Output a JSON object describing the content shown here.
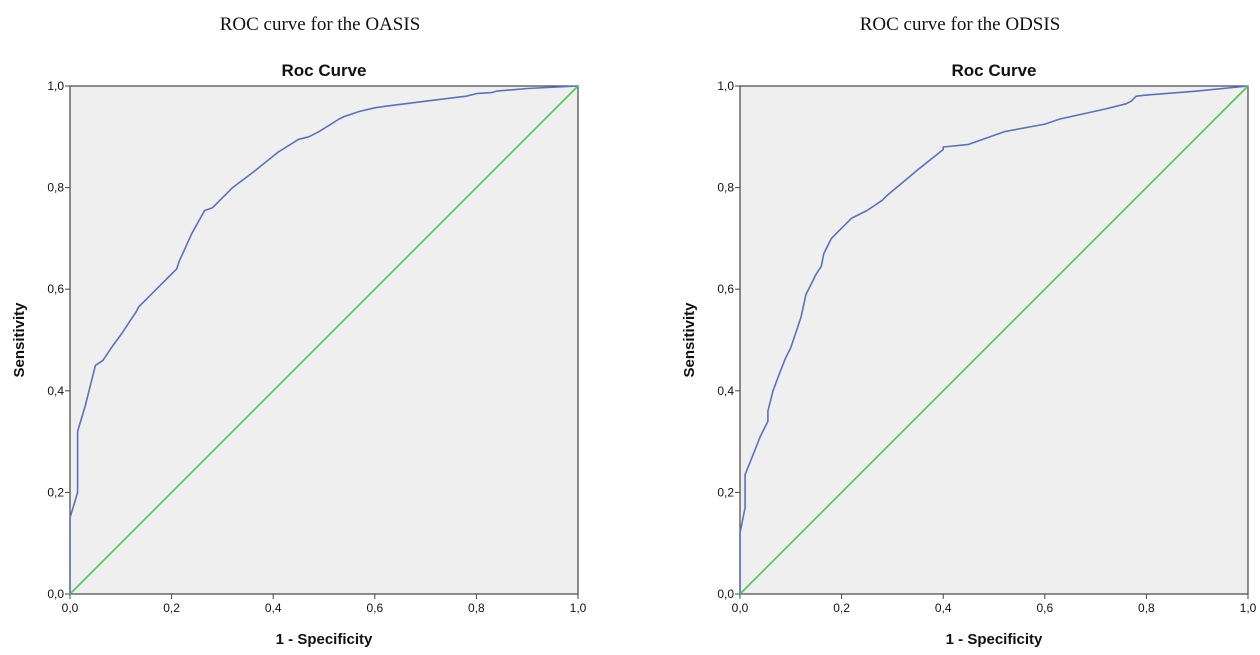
{
  "captions": {
    "left": "ROC curve for the OASIS",
    "right": "ROC curve for the ODSIS"
  },
  "colors": {
    "plot_background": "#efefef",
    "roc_line": "#5a72bd",
    "reference_line": "#4cc94c",
    "frame": "#444444"
  },
  "chart_data": [
    {
      "type": "line",
      "title": "Roc Curve",
      "xlabel": "1 - Specificity",
      "ylabel": "Sensitivity",
      "xlim": [
        0,
        1
      ],
      "ylim": [
        0,
        1
      ],
      "xticks": [
        "0,0",
        "0,2",
        "0,4",
        "0,6",
        "0,8",
        "1,0"
      ],
      "yticks": [
        "0,0",
        "0,2",
        "0,4",
        "0,6",
        "0,8",
        "1,0"
      ],
      "grid": false,
      "series": [
        {
          "role": "roc",
          "x": [
            0,
            0,
            0.015,
            0.015,
            0.03,
            0.05,
            0.065,
            0.085,
            0.1,
            0.13,
            0.135,
            0.15,
            0.17,
            0.2,
            0.21,
            0.215,
            0.24,
            0.265,
            0.28,
            0.3,
            0.32,
            0.36,
            0.41,
            0.45,
            0.47,
            0.49,
            0.53,
            0.54,
            0.57,
            0.6,
            0.62,
            0.7,
            0.78,
            0.8,
            0.83,
            0.84,
            0.9,
            1.0
          ],
          "y": [
            0,
            0.15,
            0.2,
            0.32,
            0.37,
            0.45,
            0.46,
            0.49,
            0.51,
            0.555,
            0.565,
            0.58,
            0.6,
            0.63,
            0.64,
            0.655,
            0.71,
            0.755,
            0.76,
            0.78,
            0.8,
            0.83,
            0.87,
            0.895,
            0.9,
            0.91,
            0.935,
            0.94,
            0.95,
            0.957,
            0.96,
            0.97,
            0.98,
            0.985,
            0.987,
            0.99,
            0.995,
            1.0
          ]
        },
        {
          "role": "reference",
          "x": [
            0,
            1
          ],
          "y": [
            0,
            1
          ]
        }
      ]
    },
    {
      "type": "line",
      "title": "Roc Curve",
      "xlabel": "1 - Specificity",
      "ylabel": "Sensitivity",
      "xlim": [
        0,
        1
      ],
      "ylim": [
        0,
        1
      ],
      "xticks": [
        "0,0",
        "0,2",
        "0,4",
        "0,6",
        "0,8",
        "1,0"
      ],
      "yticks": [
        "0,0",
        "0,2",
        "0,4",
        "0,6",
        "0,8",
        "1,0"
      ],
      "grid": false,
      "series": [
        {
          "role": "roc",
          "x": [
            0,
            0,
            0.01,
            0.01,
            0.02,
            0.04,
            0.055,
            0.055,
            0.065,
            0.08,
            0.09,
            0.1,
            0.12,
            0.13,
            0.135,
            0.15,
            0.16,
            0.165,
            0.18,
            0.2,
            0.22,
            0.25,
            0.28,
            0.29,
            0.32,
            0.35,
            0.4,
            0.4,
            0.45,
            0.52,
            0.6,
            0.63,
            0.72,
            0.76,
            0.77,
            0.78,
            0.8,
            0.9,
            1.0
          ],
          "y": [
            0,
            0.12,
            0.17,
            0.235,
            0.26,
            0.31,
            0.34,
            0.36,
            0.4,
            0.44,
            0.465,
            0.485,
            0.545,
            0.59,
            0.6,
            0.63,
            0.645,
            0.67,
            0.7,
            0.72,
            0.74,
            0.755,
            0.775,
            0.785,
            0.81,
            0.835,
            0.875,
            0.88,
            0.885,
            0.91,
            0.925,
            0.935,
            0.955,
            0.965,
            0.97,
            0.98,
            0.982,
            0.99,
            1.0
          ]
        },
        {
          "role": "reference",
          "x": [
            0,
            1
          ],
          "y": [
            0,
            1
          ]
        }
      ]
    }
  ]
}
